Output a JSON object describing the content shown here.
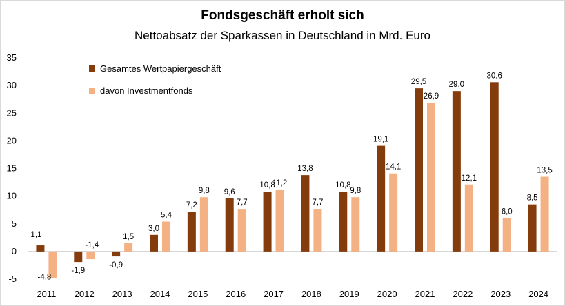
{
  "chart_data": {
    "type": "bar",
    "title": "Fondsgeschäft erholt sich",
    "subtitle": "Nettoabsatz der Sparkassen in Deutschland in Mrd. Euro",
    "categories": [
      "2011",
      "2012",
      "2013",
      "2014",
      "2015",
      "2016",
      "2017",
      "2018",
      "2019",
      "2020",
      "2021",
      "2022",
      "2023",
      "2024"
    ],
    "series": [
      {
        "name": "Gesamtes Wertpapiergeschäft",
        "color": "#843c0c",
        "values": [
          1.1,
          -1.9,
          -0.9,
          3.0,
          7.2,
          9.6,
          10.8,
          13.8,
          10.8,
          19.1,
          29.5,
          29.0,
          30.6,
          8.5
        ],
        "labels": [
          "1,1",
          "-1,9",
          "-0,9",
          "3,0",
          "7,2",
          "9,6",
          "10,8",
          "13,8",
          "10,8",
          "19,1",
          "29,5",
          "29,0",
          "30,6",
          "8,5"
        ]
      },
      {
        "name": "davon Investmentfonds",
        "color": "#f4b183",
        "values": [
          -4.8,
          -1.4,
          1.5,
          5.4,
          9.8,
          7.7,
          11.2,
          7.7,
          9.8,
          14.1,
          26.9,
          12.1,
          6.0,
          13.5
        ],
        "labels": [
          "-4,8",
          "-1,4",
          "1,5",
          "5,4",
          "9,8",
          "7,7",
          "11,2",
          "7,7",
          "9,8",
          "14,1",
          "26,9",
          "12,1",
          "6,0",
          "13,5"
        ]
      }
    ],
    "yticks": [
      35,
      30,
      25,
      20,
      15,
      10,
      5,
      0,
      -5
    ],
    "ylim": [
      -5,
      35
    ],
    "grid": false,
    "legend": "top-left"
  }
}
